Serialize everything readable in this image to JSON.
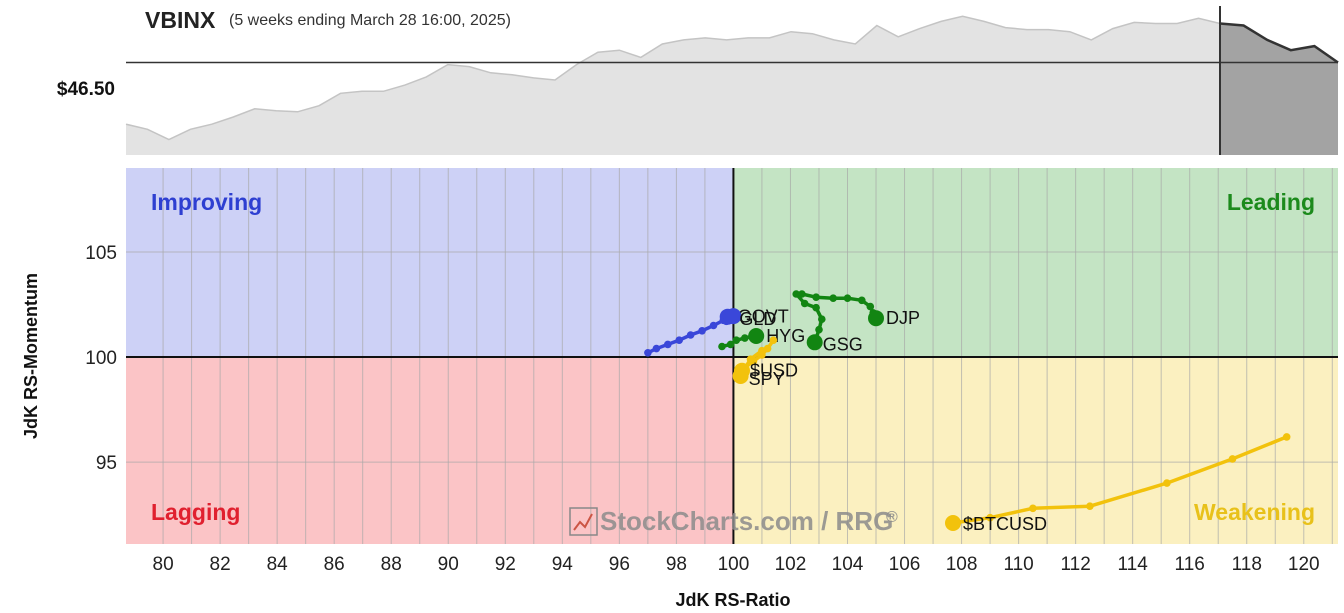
{
  "header": {
    "symbol": "VBINX",
    "period": "(5 weeks ending March 28 16:00, 2025)",
    "price_label": "$46.50"
  },
  "watermark": "StockCharts.com / RRG",
  "watermark_mark": "®",
  "chart_data": [
    {
      "type": "area",
      "name": "VBINX price",
      "price_line": 46.5,
      "values": [
        45.9,
        45.85,
        45.75,
        45.85,
        45.9,
        45.97,
        46.05,
        46.03,
        46.02,
        46.08,
        46.2,
        46.22,
        46.22,
        46.28,
        46.36,
        46.48,
        46.46,
        46.4,
        46.38,
        46.35,
        46.33,
        46.48,
        46.6,
        46.62,
        46.55,
        46.68,
        46.72,
        46.74,
        46.72,
        46.74,
        46.74,
        46.8,
        46.78,
        46.72,
        46.68,
        46.86,
        46.75,
        46.83,
        46.9,
        46.95,
        46.9,
        46.84,
        46.82,
        46.82,
        46.8,
        46.72,
        46.83,
        46.89,
        46.88,
        46.88,
        46.93,
        46.88
      ],
      "highlight_values": [
        46.88,
        46.86,
        46.72,
        46.62,
        46.66,
        46.5
      ]
    },
    {
      "type": "scatter",
      "name": "Relative Rotation Graph",
      "xlabel": "JdK RS-Ratio",
      "ylabel": "JdK RS-Momentum",
      "xlim": [
        78.7,
        121.2
      ],
      "ylim": [
        91.1,
        109.0
      ],
      "x_ticks": [
        80,
        82,
        84,
        86,
        88,
        90,
        92,
        94,
        96,
        98,
        100,
        102,
        104,
        106,
        108,
        110,
        112,
        114,
        116,
        118,
        120
      ],
      "y_ticks": [
        95,
        100,
        105
      ],
      "center": [
        100,
        100
      ],
      "quadrants": [
        {
          "label": "Improving",
          "color": "#2e3fd1",
          "fill": "#cdd1f6"
        },
        {
          "label": "Leading",
          "color": "#1c8a1c",
          "fill": "#c4e4c4"
        },
        {
          "label": "Lagging",
          "color": "#e0202f",
          "fill": "#fbc4c6"
        },
        {
          "label": "Weakening",
          "color": "#e8c11a",
          "fill": "#fbf0c0"
        }
      ],
      "series": [
        {
          "name": "GOVT",
          "color": "#3a47d9",
          "points": [
            [
              97.0,
              100.2
            ],
            [
              97.3,
              100.4
            ],
            [
              97.7,
              100.6
            ],
            [
              98.1,
              100.8
            ],
            [
              98.5,
              101.05
            ],
            [
              98.9,
              101.25
            ],
            [
              99.3,
              101.5
            ],
            [
              99.65,
              101.75
            ],
            [
              99.8,
              101.92
            ]
          ]
        },
        {
          "name": "GLD",
          "color": "#3a47d9",
          "points": [
            [
              99.75,
              101.7
            ],
            [
              99.95,
              101.85
            ],
            [
              100.0,
              101.95
            ]
          ]
        },
        {
          "name": "HYG",
          "color": "#128512",
          "points": [
            [
              99.6,
              100.5
            ],
            [
              99.9,
              100.6
            ],
            [
              100.1,
              100.8
            ],
            [
              100.4,
              100.9
            ],
            [
              100.7,
              101.0
            ],
            [
              100.8,
              101.0
            ]
          ]
        },
        {
          "name": "DJP",
          "color": "#128512",
          "points": [
            [
              102.4,
              103.0
            ],
            [
              102.9,
              102.85
            ],
            [
              103.5,
              102.8
            ],
            [
              104.0,
              102.8
            ],
            [
              104.5,
              102.7
            ],
            [
              104.8,
              102.4
            ],
            [
              104.9,
              102.1
            ],
            [
              105.0,
              101.85
            ]
          ]
        },
        {
          "name": "GSG",
          "color": "#128512",
          "points": [
            [
              102.2,
              103.0
            ],
            [
              102.5,
              102.55
            ],
            [
              102.9,
              102.35
            ],
            [
              103.1,
              101.8
            ],
            [
              103.0,
              101.3
            ],
            [
              102.85,
              100.7
            ]
          ]
        },
        {
          "name": "$USD",
          "color": "#f2c20c",
          "points": [
            [
              101.4,
              100.8
            ],
            [
              101.2,
              100.4
            ],
            [
              101.0,
              100.1
            ],
            [
              100.7,
              99.8
            ],
            [
              100.4,
              99.5
            ],
            [
              100.3,
              99.35
            ]
          ]
        },
        {
          "name": "SPY",
          "color": "#f2c20c",
          "points": [
            [
              101.0,
              100.3
            ],
            [
              100.6,
              99.9
            ],
            [
              100.35,
              99.35
            ],
            [
              100.25,
              99.1
            ]
          ]
        },
        {
          "name": "$BTCUSD",
          "color": "#f2c20c",
          "points": [
            [
              119.4,
              96.2
            ],
            [
              117.5,
              95.15
            ],
            [
              115.2,
              94.0
            ],
            [
              112.5,
              92.9
            ],
            [
              110.5,
              92.8
            ],
            [
              109.0,
              92.35
            ],
            [
              107.7,
              92.1
            ]
          ]
        }
      ]
    }
  ]
}
